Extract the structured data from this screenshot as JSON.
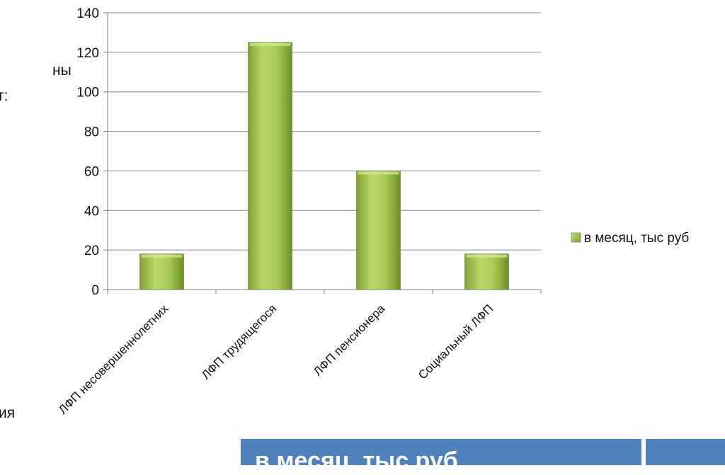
{
  "fragments": {
    "line1": "ны",
    "line2": "т:",
    "line3": "ия"
  },
  "table_header": "в месяц, тыс руб",
  "colors": {
    "bar_light": "#b8d86a",
    "bar_mid": "#92b843",
    "bar_dark": "#5f7f1f",
    "axis": "#7f7f7f",
    "grid": "#8c8c8c",
    "table": "#4f81bd"
  },
  "chart_data": {
    "type": "bar",
    "categories": [
      "ЛФП несовершеннолетних",
      "ЛФП трудящегося",
      "ЛФП пенсионера",
      "Социальный ЛФП"
    ],
    "series": [
      {
        "name": "в  месяц, тыс руб",
        "values": [
          18,
          125,
          60,
          18
        ]
      }
    ],
    "yticks": [
      0,
      20,
      40,
      60,
      80,
      100,
      120,
      140
    ],
    "ylim": [
      0,
      140
    ],
    "grid": true,
    "legend": "right"
  }
}
